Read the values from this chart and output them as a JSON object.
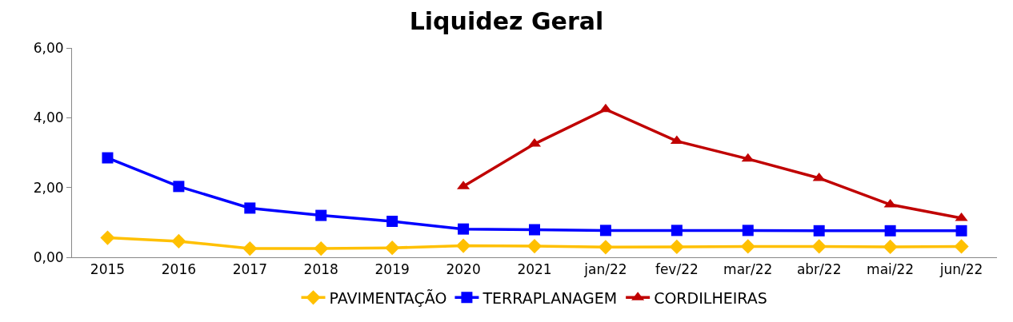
{
  "chart_data": {
    "type": "line",
    "title": "Liquidez Geral",
    "categories": [
      "2015",
      "2016",
      "2017",
      "2018",
      "2019",
      "2020",
      "2021",
      "jan/22",
      "fev/22",
      "mar/22",
      "abr/22",
      "mai/22",
      "jun/22"
    ],
    "series": [
      {
        "name": "PAVIMENTAÇÃO",
        "color": "#ffc000",
        "marker": "diamond",
        "values": [
          0.56,
          0.46,
          0.25,
          0.25,
          0.27,
          0.33,
          0.32,
          0.29,
          0.3,
          0.31,
          0.31,
          0.3,
          0.31
        ]
      },
      {
        "name": "TERRAPLANAGEM",
        "color": "#0000ff",
        "marker": "square",
        "values": [
          2.85,
          2.03,
          1.41,
          1.2,
          1.03,
          0.81,
          0.79,
          0.77,
          0.77,
          0.77,
          0.76,
          0.76,
          0.76
        ]
      },
      {
        "name": "CORDILHEIRAS",
        "color": "#c00000",
        "marker": "triangle",
        "values": [
          null,
          null,
          null,
          null,
          null,
          2.03,
          3.25,
          4.24,
          3.33,
          2.82,
          2.27,
          1.51,
          1.12
        ]
      }
    ],
    "ylim": [
      0,
      6
    ],
    "yticks": [
      {
        "value": 0,
        "label": "0,00"
      },
      {
        "value": 2,
        "label": "2,00"
      },
      {
        "value": 4,
        "label": "4,00"
      },
      {
        "value": 6,
        "label": "6,00"
      }
    ],
    "legend": "bottom",
    "line_style": "solid"
  }
}
